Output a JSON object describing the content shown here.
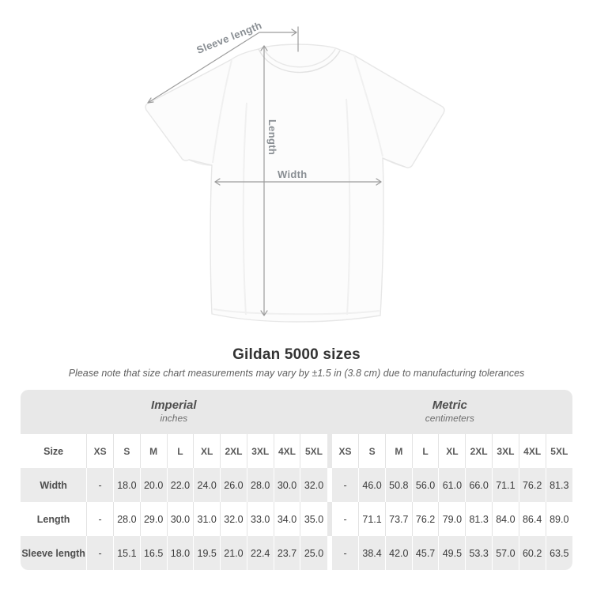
{
  "diagram": {
    "sleeve_length_label": "Sleeve length",
    "length_label": "Length",
    "width_label": "Width",
    "line_color": "#9c9c9c",
    "label_color": "#8a8f94"
  },
  "title": "Gildan 5000 sizes",
  "subtitle": "Please note that size chart measurements may vary by ±1.5 in (3.8 cm) due to manufacturing tolerances",
  "size_chart": {
    "groups": [
      {
        "name": "Imperial",
        "unit": "inches"
      },
      {
        "name": "Metric",
        "unit": "centimeters"
      }
    ],
    "size_label": "Size",
    "sizes": [
      "XS",
      "S",
      "M",
      "L",
      "XL",
      "2XL",
      "3XL",
      "4XL",
      "5XL"
    ],
    "rows": [
      {
        "label": "Width",
        "imperial": [
          "-",
          "18.0",
          "20.0",
          "22.0",
          "24.0",
          "26.0",
          "28.0",
          "30.0",
          "32.0"
        ],
        "metric": [
          "-",
          "46.0",
          "50.8",
          "56.0",
          "61.0",
          "66.0",
          "71.1",
          "76.2",
          "81.3"
        ]
      },
      {
        "label": "Length",
        "imperial": [
          "-",
          "28.0",
          "29.0",
          "30.0",
          "31.0",
          "32.0",
          "33.0",
          "34.0",
          "35.0"
        ],
        "metric": [
          "-",
          "71.1",
          "73.7",
          "76.2",
          "79.0",
          "81.3",
          "84.0",
          "86.4",
          "89.0"
        ]
      },
      {
        "label": "Sleeve length",
        "imperial": [
          "-",
          "15.1",
          "16.5",
          "18.0",
          "19.5",
          "21.0",
          "22.4",
          "23.7",
          "25.0"
        ],
        "metric": [
          "-",
          "38.4",
          "42.0",
          "45.7",
          "49.5",
          "53.3",
          "57.0",
          "60.2",
          "63.5"
        ]
      }
    ],
    "colors": {
      "header_bg": "#e8e8e8",
      "alt_row_bg": "#ebebeb",
      "divider_line": "#e3e3e3",
      "heading_text": "#4f4f4f",
      "value_text": "#3a3a3a"
    }
  }
}
